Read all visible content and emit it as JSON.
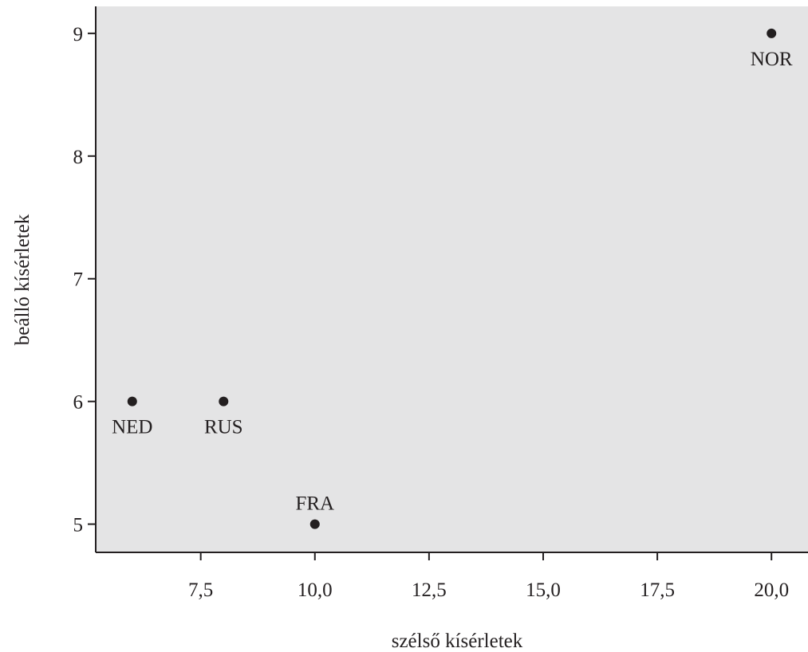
{
  "chart_data": {
    "type": "scatter",
    "title": "",
    "xlabel": "szélső kísérletek",
    "ylabel": "beálló kísérletek",
    "xlim": [
      5.2,
      20.8
    ],
    "ylim": [
      4.77,
      9.22
    ],
    "xticks": [
      7.5,
      10.0,
      12.5,
      15.0,
      17.5,
      20.0
    ],
    "xtick_labels": [
      "7,5",
      "10,0",
      "12,5",
      "15,0",
      "17,5",
      "20,0"
    ],
    "yticks": [
      5,
      6,
      7,
      8,
      9
    ],
    "ytick_labels": [
      "5",
      "6",
      "7",
      "8",
      "9"
    ],
    "grid": false,
    "background_color": "#e4e4e5",
    "point_color": "#231f20",
    "points": [
      {
        "label": "NED",
        "x": 6,
        "y": 6,
        "label_position": "below"
      },
      {
        "label": "RUS",
        "x": 8,
        "y": 6,
        "label_position": "below"
      },
      {
        "label": "FRA",
        "x": 10,
        "y": 5,
        "label_position": "above"
      },
      {
        "label": "NOR",
        "x": 20,
        "y": 9,
        "label_position": "below"
      }
    ]
  }
}
